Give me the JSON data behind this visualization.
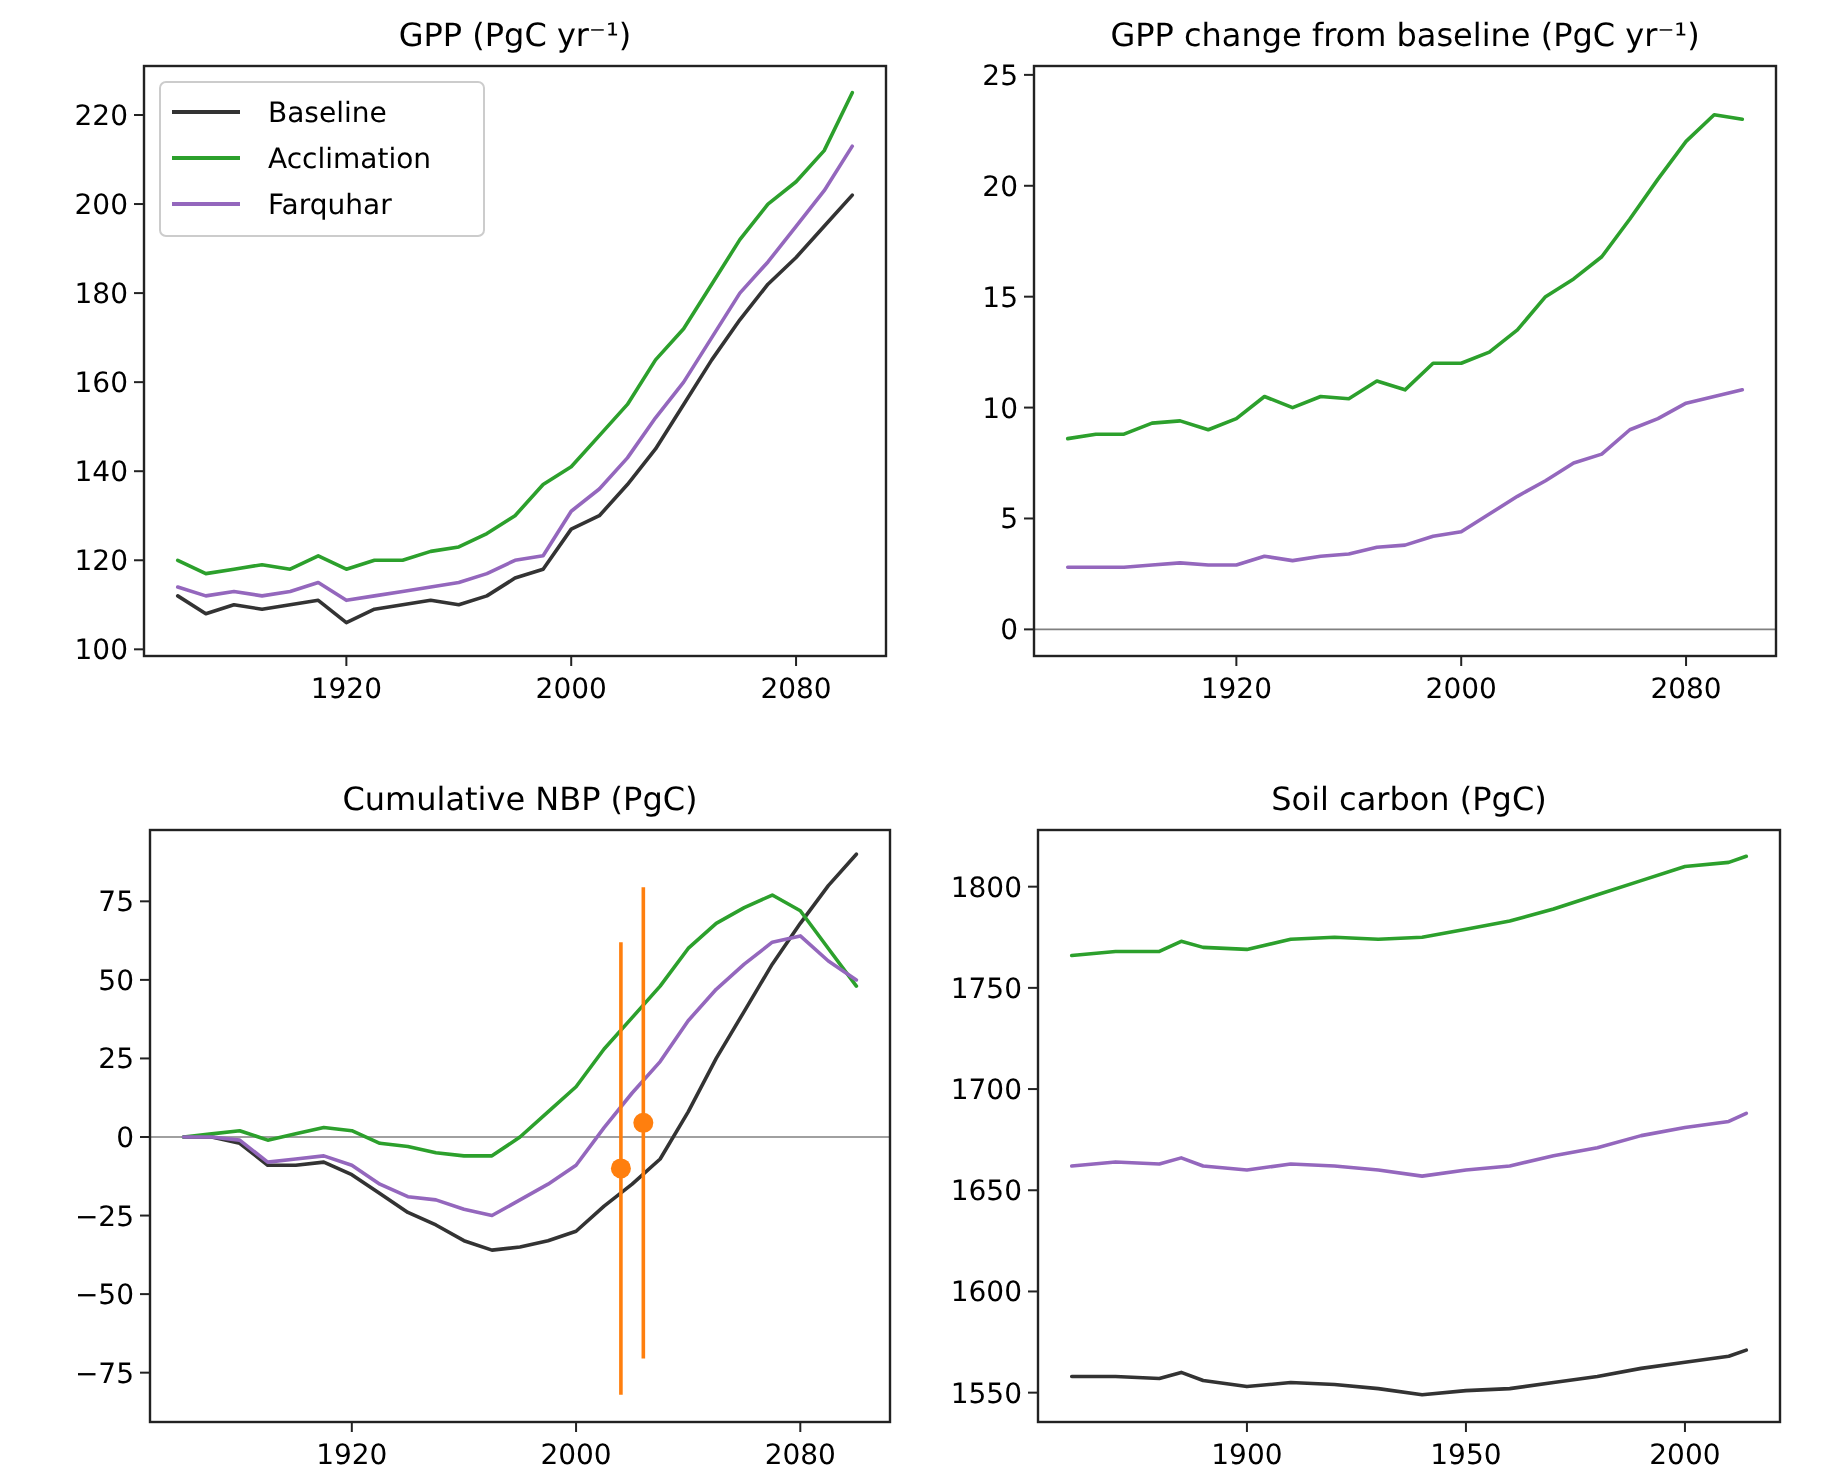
{
  "chart_data": [
    {
      "type": "line",
      "title": "GPP (PgC yr⁻¹)",
      "x": [
        1860,
        1870,
        1880,
        1890,
        1900,
        1910,
        1920,
        1930,
        1940,
        1950,
        1960,
        1970,
        1980,
        1990,
        2000,
        2010,
        2020,
        2030,
        2040,
        2050,
        2060,
        2070,
        2080,
        2090,
        2100
      ],
      "xlim": [
        1848,
        2112
      ],
      "xticks": [
        1920,
        2000,
        2080
      ],
      "ylim": [
        98.5,
        231
      ],
      "yticks": [
        100,
        120,
        140,
        160,
        180,
        200,
        220
      ],
      "legend": "top left",
      "grid": false,
      "series": [
        {
          "name": "Baseline",
          "color": "#333333",
          "values": [
            112,
            108,
            110,
            109,
            110,
            111,
            106,
            109,
            110,
            111,
            110,
            112,
            116,
            118,
            127,
            130,
            137,
            145,
            155,
            165,
            174,
            182,
            188,
            195,
            202
          ]
        },
        {
          "name": "Acclimation",
          "color": "#2ca02c",
          "values": [
            120,
            117,
            118,
            119,
            118,
            121,
            118,
            120,
            120,
            122,
            123,
            126,
            130,
            137,
            141,
            148,
            155,
            165,
            172,
            182,
            192,
            200,
            205,
            212,
            225
          ]
        },
        {
          "name": "Farquhar",
          "color": "#9467bd",
          "values": [
            114,
            112,
            113,
            112,
            113,
            115,
            111,
            112,
            113,
            114,
            115,
            117,
            120,
            121,
            131,
            136,
            143,
            152,
            160,
            170,
            180,
            187,
            195,
            203,
            213
          ]
        }
      ]
    },
    {
      "type": "line",
      "title": "GPP change from baseline (PgC yr⁻¹)",
      "x": [
        1860,
        1870,
        1880,
        1890,
        1900,
        1910,
        1920,
        1930,
        1940,
        1950,
        1960,
        1970,
        1980,
        1990,
        2000,
        2010,
        2020,
        2030,
        2040,
        2050,
        2060,
        2070,
        2080,
        2090,
        2100
      ],
      "xlim": [
        1848,
        2112
      ],
      "xticks": [
        1920,
        2000,
        2080
      ],
      "ylim": [
        -1.2,
        25.4
      ],
      "yticks": [
        0,
        5,
        10,
        15,
        20,
        25
      ],
      "grid": false,
      "ref_lines": [
        {
          "axis": "y",
          "value": 0,
          "color": "#808080"
        }
      ],
      "series": [
        {
          "color": "#2ca02c",
          "values": [
            8.6,
            8.8,
            8.8,
            9.3,
            9.4,
            9.0,
            9.5,
            10.5,
            10.0,
            10.5,
            10.4,
            11.2,
            10.8,
            12.0,
            12.0,
            12.5,
            13.5,
            15.0,
            15.8,
            16.8,
            18.5,
            20.3,
            22.0,
            23.2,
            23.0
          ]
        },
        {
          "color": "#9467bd",
          "values": [
            2.8,
            2.8,
            2.8,
            2.9,
            3.0,
            2.9,
            2.9,
            3.3,
            3.1,
            3.3,
            3.4,
            3.7,
            3.8,
            4.2,
            4.4,
            5.2,
            6.0,
            6.7,
            7.5,
            7.9,
            9.0,
            9.5,
            10.2,
            10.5,
            10.8
          ]
        }
      ]
    },
    {
      "type": "line",
      "title": "Cumulative NBP (PgC)",
      "x": [
        1860,
        1870,
        1880,
        1890,
        1900,
        1910,
        1920,
        1930,
        1940,
        1950,
        1960,
        1970,
        1980,
        1990,
        2000,
        2010,
        2020,
        2030,
        2040,
        2050,
        2060,
        2070,
        2080,
        2090,
        2100
      ],
      "xlim": [
        1848,
        2112
      ],
      "xticks": [
        1920,
        2000,
        2080
      ],
      "ylim": [
        -90.7,
        97.7
      ],
      "yticks": [
        {
          "value": -75,
          "label": "−75"
        },
        {
          "value": -50,
          "label": "−50"
        },
        {
          "value": -25,
          "label": "−25"
        },
        0,
        25,
        50,
        75
      ],
      "grid": false,
      "ref_lines": [
        {
          "axis": "y",
          "value": 0,
          "color": "#808080"
        }
      ],
      "series": [
        {
          "color": "#333333",
          "values": [
            0,
            0,
            -2,
            -9,
            -9,
            -8,
            -12,
            -18,
            -24,
            -28,
            -33,
            -36,
            -35,
            -33,
            -30,
            -22,
            -15,
            -7,
            8,
            25,
            40,
            55,
            68,
            80,
            90
          ]
        },
        {
          "color": "#2ca02c",
          "values": [
            0,
            1,
            2,
            -1,
            1,
            3,
            2,
            -2,
            -3,
            -5,
            -6,
            -6,
            0,
            8,
            16,
            28,
            38,
            48,
            60,
            68,
            73,
            77,
            72,
            60,
            48
          ]
        },
        {
          "color": "#9467bd",
          "values": [
            0,
            0,
            -1,
            -8,
            -7,
            -6,
            -9,
            -15,
            -19,
            -20,
            -23,
            -25,
            -20,
            -15,
            -9,
            3,
            14,
            24,
            37,
            47,
            55,
            62,
            64,
            56,
            50
          ]
        },
        {
          "type": "scatter",
          "color": "#ff7f0e",
          "marker": "circle",
          "x": [
            2016,
            2024
          ],
          "values": [
            -10,
            4.5
          ],
          "errors": [
            72,
            75
          ]
        }
      ]
    },
    {
      "type": "line",
      "title": "Soil carbon (PgC)",
      "x": [
        1860,
        1870,
        1880,
        1885,
        1890,
        1900,
        1910,
        1920,
        1930,
        1940,
        1950,
        1960,
        1970,
        1980,
        1990,
        2000,
        2010,
        2014
      ],
      "xlim": [
        1852.3,
        2021.7
      ],
      "xticks": [
        1900,
        1950,
        2000
      ],
      "ylim": [
        1535.5,
        1828
      ],
      "yticks": [
        1550,
        1600,
        1650,
        1700,
        1750,
        1800
      ],
      "grid": false,
      "series": [
        {
          "color": "#2ca02c",
          "values": [
            1766,
            1768,
            1768,
            1773,
            1770,
            1769,
            1774,
            1775,
            1774,
            1775,
            1779,
            1783,
            1789,
            1796,
            1803,
            1810,
            1812,
            1815
          ]
        },
        {
          "color": "#9467bd",
          "values": [
            1662,
            1664,
            1663,
            1666,
            1662,
            1660,
            1663,
            1662,
            1660,
            1657,
            1660,
            1662,
            1667,
            1671,
            1677,
            1681,
            1684,
            1688
          ]
        },
        {
          "color": "#333333",
          "values": [
            1558,
            1558,
            1557,
            1560,
            1556,
            1553,
            1555,
            1554,
            1552,
            1549,
            1551,
            1552,
            1555,
            1558,
            1562,
            1565,
            1568,
            1571
          ]
        }
      ]
    }
  ]
}
